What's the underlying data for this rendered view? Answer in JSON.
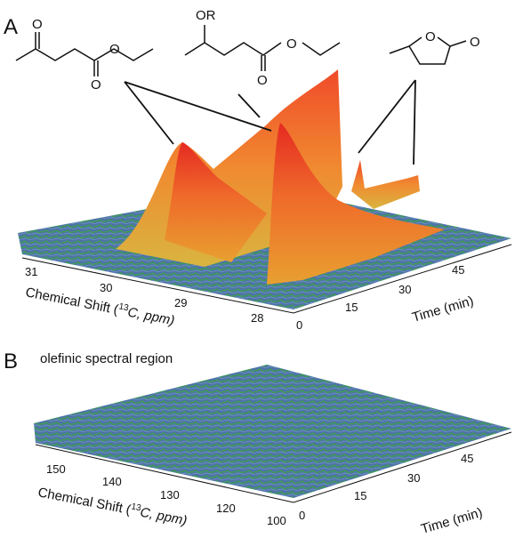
{
  "panels": [
    {
      "label": "A",
      "molecules": [
        {
          "atoms": [
            "O",
            "O",
            "O"
          ]
        },
        {
          "atoms": [
            "OR",
            "O",
            "O"
          ]
        },
        {
          "atoms": [
            "O",
            "O"
          ]
        }
      ],
      "x_axis": {
        "title_prefix": "Chemical Shift (",
        "isotope": "13",
        "title_suffix": "C, ppm)",
        "ticks": [
          "31",
          "30",
          "29",
          "28"
        ]
      },
      "time_axis": {
        "title": "Time (min)",
        "ticks": [
          "0",
          "15",
          "30",
          "45"
        ]
      }
    },
    {
      "label": "B",
      "subtitle": "olefinic spectral region",
      "x_axis": {
        "title_prefix": "Chemical Shift (",
        "isotope": "13",
        "title_suffix": "C, ppm)",
        "ticks": [
          "150",
          "140",
          "130",
          "120",
          "100"
        ]
      },
      "time_axis": {
        "title": "Time (min)",
        "ticks": [
          "0",
          "15",
          "30",
          "45"
        ]
      }
    }
  ]
}
